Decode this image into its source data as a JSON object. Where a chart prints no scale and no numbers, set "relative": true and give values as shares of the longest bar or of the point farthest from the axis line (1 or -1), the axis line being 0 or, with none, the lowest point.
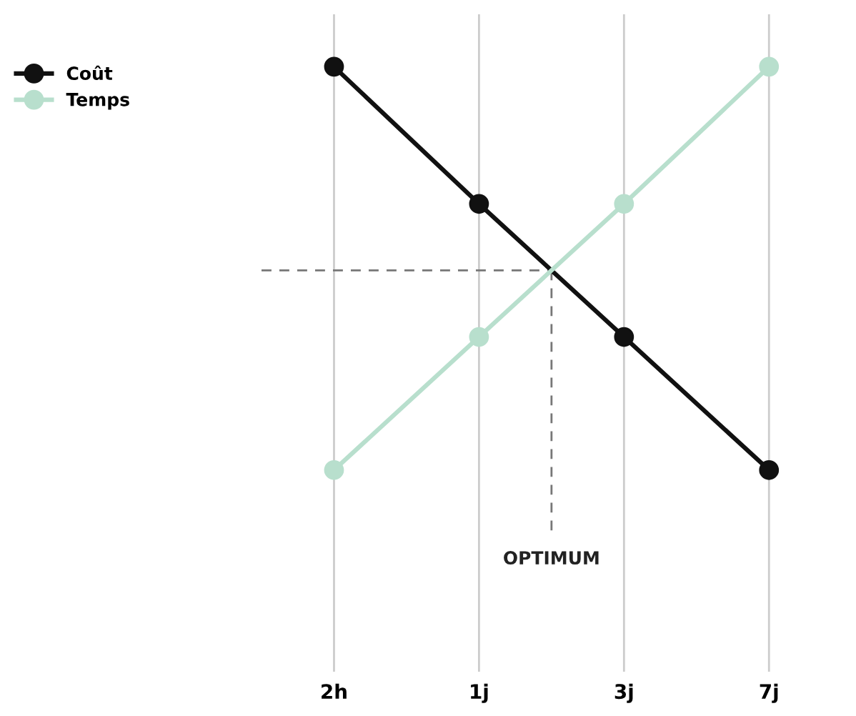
{
  "chart_data": {
    "type": "line",
    "relative": true,
    "categories": [
      "2h",
      "1j",
      "3j",
      "7j"
    ],
    "series": [
      {
        "name": "Coût",
        "color": "#111111",
        "values": [
          1,
          0.66,
          0.33,
          0
        ]
      },
      {
        "name": "Temps",
        "color": "#b8dfcd",
        "values": [
          0,
          0.33,
          0.66,
          1
        ]
      }
    ],
    "annotations": [
      "OPTIMUM"
    ],
    "ref_lines": [
      {
        "axis": "y",
        "value": 0.495,
        "color": "#777777",
        "line_style": "dashed"
      }
    ],
    "grid": "x",
    "legend": "top left",
    "marker": "circle",
    "line_style": "solid"
  }
}
